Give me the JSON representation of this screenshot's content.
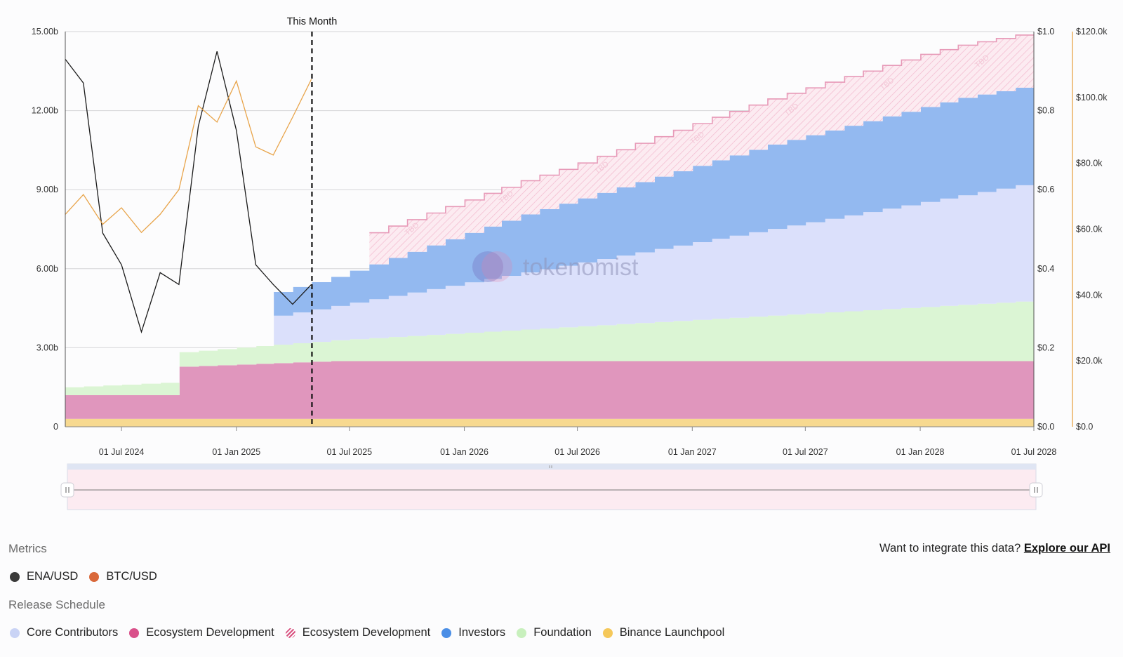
{
  "chart_data": {
    "type": "area",
    "x_ticks": [
      "01 Jul 2024",
      "01 Jan 2025",
      "01 Jul 2025",
      "01 Jan 2026",
      "01 Jul 2026",
      "01 Jan 2027",
      "01 Jul 2027",
      "01 Jan 2028",
      "01 Jul 2028"
    ],
    "x_range": [
      "2024-04-02",
      "2028-07-01"
    ],
    "left_axis": {
      "ticks": [
        "0",
        "3.00b",
        "6.00b",
        "9.00b",
        "12.00b",
        "15.00b"
      ],
      "ylim": [
        0,
        15
      ]
    },
    "right_axis_ena": {
      "ticks": [
        "$0.0",
        "$0.2",
        "$0.4",
        "$0.6",
        "$0.8",
        "$1.0"
      ],
      "ylim": [
        0,
        1.0
      ]
    },
    "right_axis_btc": {
      "ticks": [
        "$0.0",
        "$20.0k",
        "$40.0k",
        "$60.0k",
        "$80.0k",
        "$100.0k",
        "$120.0k"
      ],
      "ylim": [
        0,
        120000
      ]
    },
    "marker": {
      "label": "This Month",
      "date": "2025-05-02"
    },
    "watermark": "tokenomist",
    "hatch_label": "TBD",
    "stack_series": [
      {
        "name": "Binance Launchpool",
        "color": "#f7d990",
        "points": [
          [
            "2024-04-02",
            0.3
          ],
          [
            "2028-07-01",
            0.3
          ]
        ]
      },
      {
        "name": "Ecosystem Development",
        "color": "#e096bd",
        "points": [
          [
            "2024-04-02",
            0.9
          ],
          [
            "2024-10-01",
            0.9
          ],
          [
            "2024-10-02",
            1.98
          ],
          [
            "2025-05-01",
            2.17
          ],
          [
            "2025-06-01",
            2.19
          ],
          [
            "2028-07-01",
            2.19
          ]
        ]
      },
      {
        "name": "Foundation",
        "color": "#dbf5d4",
        "points": [
          [
            "2024-04-02",
            0.3
          ],
          [
            "2024-10-01",
            0.5
          ],
          [
            "2024-10-02",
            0.55
          ],
          [
            "2025-03-01",
            0.7
          ],
          [
            "2025-05-01",
            0.75
          ],
          [
            "2028-07-01",
            2.3
          ]
        ]
      },
      {
        "name": "Core Contributors",
        "color": "#dbe0fb",
        "points": [
          [
            "2024-04-02",
            0
          ],
          [
            "2025-03-01",
            0
          ],
          [
            "2025-03-02",
            1.1
          ],
          [
            "2025-06-01",
            1.3
          ],
          [
            "2028-07-01",
            4.5
          ]
        ]
      },
      {
        "name": "Investors",
        "color": "#93b9f0",
        "points": [
          [
            "2024-04-02",
            0
          ],
          [
            "2025-03-01",
            0
          ],
          [
            "2025-03-02",
            0.9
          ],
          [
            "2025-06-01",
            1.1
          ],
          [
            "2026-04-01",
            2.2
          ],
          [
            "2027-05-01",
            3.2
          ],
          [
            "2028-03-01",
            3.7
          ],
          [
            "2028-07-01",
            3.7
          ]
        ]
      },
      {
        "name": "Ecosystem Development",
        "color": "#fbe8ef",
        "hatched": true,
        "points": [
          [
            "2024-04-02",
            0
          ],
          [
            "2025-08-01",
            0
          ],
          [
            "2025-08-02",
            1.2
          ],
          [
            "2026-06-01",
            1.3
          ],
          [
            "2027-01-01",
            1.6
          ],
          [
            "2028-01-01",
            2.0
          ],
          [
            "2028-07-01",
            2.0
          ]
        ]
      }
    ],
    "line_series": [
      {
        "name": "ENA/USD",
        "color": "#1a1a1a",
        "points": [
          [
            "2024-04-02",
            0.93
          ],
          [
            "2024-05-01",
            0.87
          ],
          [
            "2024-06-01",
            0.49
          ],
          [
            "2024-07-01",
            0.41
          ],
          [
            "2024-08-02",
            0.24
          ],
          [
            "2024-09-01",
            0.39
          ],
          [
            "2024-10-01",
            0.36
          ],
          [
            "2024-11-01",
            0.76
          ],
          [
            "2024-12-01",
            0.95
          ],
          [
            "2025-01-01",
            0.75
          ],
          [
            "2025-02-01",
            0.41
          ],
          [
            "2025-03-01",
            0.36
          ],
          [
            "2025-04-01",
            0.31
          ],
          [
            "2025-05-01",
            0.36
          ]
        ]
      },
      {
        "name": "BTC/USD",
        "color": "#e8a44a",
        "points": [
          [
            "2024-04-02",
            64500
          ],
          [
            "2024-05-01",
            70500
          ],
          [
            "2024-06-01",
            61500
          ],
          [
            "2024-07-01",
            66500
          ],
          [
            "2024-08-02",
            59000
          ],
          [
            "2024-09-01",
            64500
          ],
          [
            "2024-10-01",
            72000
          ],
          [
            "2024-11-01",
            97500
          ],
          [
            "2024-12-01",
            92500
          ],
          [
            "2025-01-01",
            105000
          ],
          [
            "2025-02-01",
            85000
          ],
          [
            "2025-03-01",
            82500
          ],
          [
            "2025-04-01",
            94000
          ],
          [
            "2025-05-01",
            105500
          ]
        ]
      }
    ]
  },
  "legend": {
    "metrics_title": "Metrics",
    "metrics": [
      {
        "label": "ENA/USD",
        "color": "#3a3a3a"
      },
      {
        "label": "BTC/USD",
        "color": "#d9683a"
      }
    ],
    "schedule_title": "Release Schedule",
    "schedule": [
      {
        "label": "Core Contributors",
        "color": "#c9d3f5"
      },
      {
        "label": "Ecosystem Development",
        "color": "#d9508a"
      },
      {
        "label": "Ecosystem Development",
        "color": "#d9508a",
        "hatched": true
      },
      {
        "label": "Investors",
        "color": "#4a8ee6"
      },
      {
        "label": "Foundation",
        "color": "#c8f0bd"
      },
      {
        "label": "Binance Launchpool",
        "color": "#f5c85a"
      }
    ]
  },
  "api": {
    "prefix": "Want to integrate this data?",
    "link": "Explore our API"
  }
}
